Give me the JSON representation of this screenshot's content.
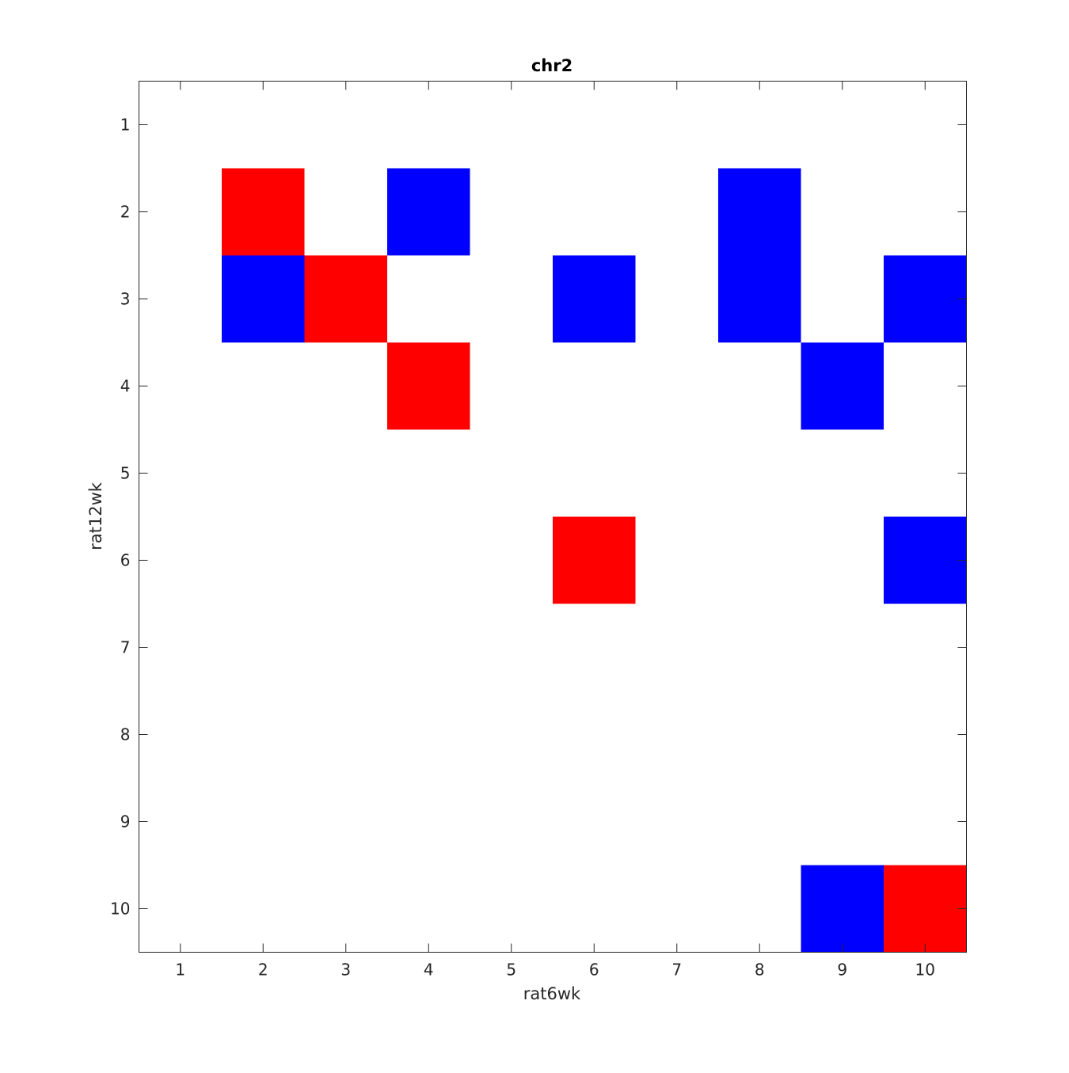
{
  "chart_data": {
    "type": "heatmap",
    "title": "chr2",
    "xlabel": "rat6wk",
    "ylabel": "rat12wk",
    "x_categories": [
      "1",
      "2",
      "3",
      "4",
      "5",
      "6",
      "7",
      "8",
      "9",
      "10"
    ],
    "y_categories": [
      "1",
      "2",
      "3",
      "4",
      "5",
      "6",
      "7",
      "8",
      "9",
      "10"
    ],
    "xlim": [
      0.5,
      10.5
    ],
    "ylim": [
      0.5,
      10.5
    ],
    "y_axis_reversed": true,
    "grid": false,
    "colors": {
      "positive": "#ff0000",
      "negative": "#0000ff",
      "zero": "#ffffff",
      "axis": "#262626"
    },
    "cells": [
      {
        "x": 2,
        "y": 2,
        "value": 1
      },
      {
        "x": 4,
        "y": 2,
        "value": -1
      },
      {
        "x": 8,
        "y": 2,
        "value": -1
      },
      {
        "x": 2,
        "y": 3,
        "value": -1
      },
      {
        "x": 3,
        "y": 3,
        "value": 1
      },
      {
        "x": 6,
        "y": 3,
        "value": -1
      },
      {
        "x": 8,
        "y": 3,
        "value": -1
      },
      {
        "x": 10,
        "y": 3,
        "value": -1
      },
      {
        "x": 4,
        "y": 4,
        "value": 1
      },
      {
        "x": 9,
        "y": 4,
        "value": -1
      },
      {
        "x": 6,
        "y": 6,
        "value": 1
      },
      {
        "x": 10,
        "y": 6,
        "value": -1
      },
      {
        "x": 9,
        "y": 10,
        "value": -1
      },
      {
        "x": 10,
        "y": 10,
        "value": 1
      }
    ]
  }
}
